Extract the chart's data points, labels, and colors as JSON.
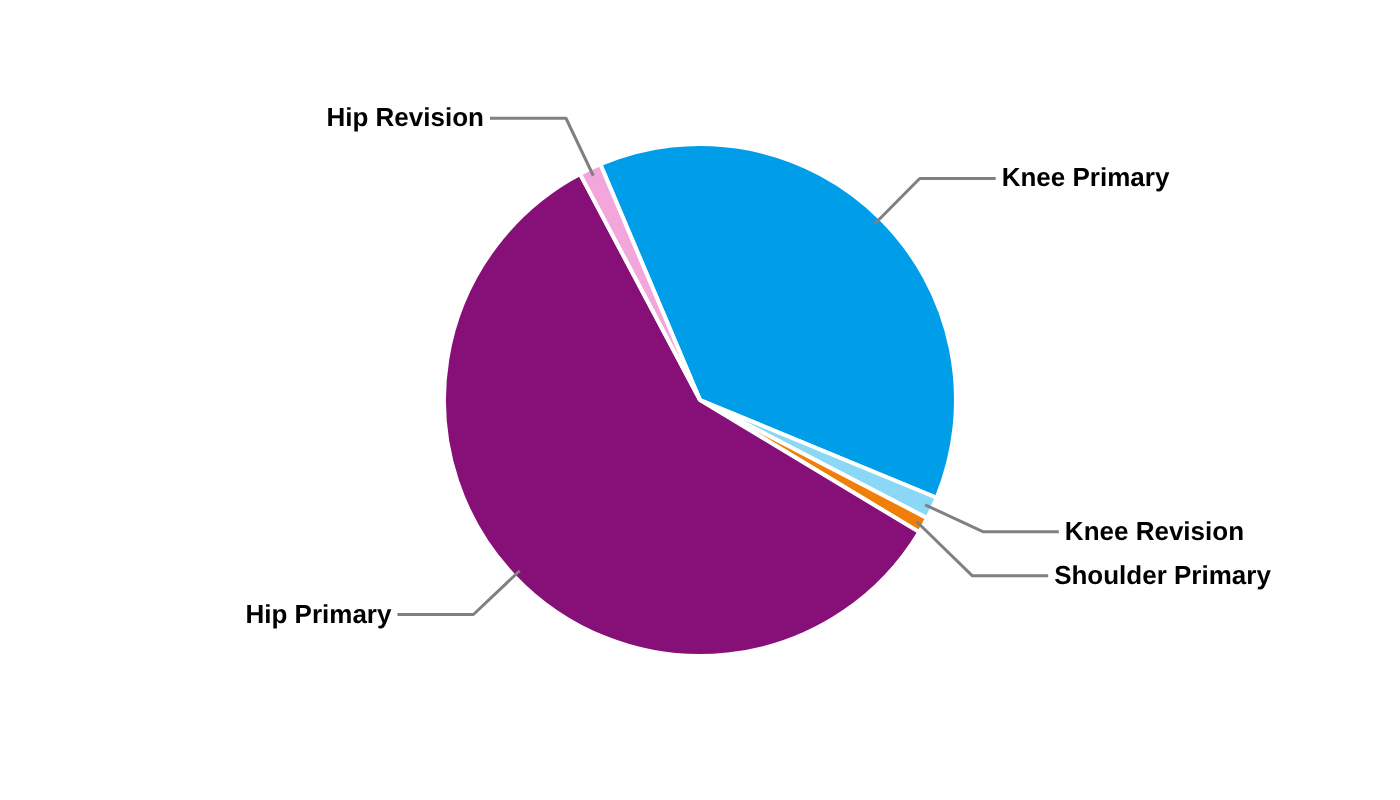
{
  "chart_data": {
    "type": "pie",
    "categories": [
      "Knee Primary",
      "Knee Revision",
      "Shoulder Primary",
      "Hip Primary",
      "Hip Revision"
    ],
    "values": [
      37.6,
      1.4,
      1.0,
      58.6,
      1.4
    ],
    "colors": [
      "#009ee8",
      "#8ad8f5",
      "#f07f09",
      "#870f78",
      "#f2a6dc"
    ]
  }
}
